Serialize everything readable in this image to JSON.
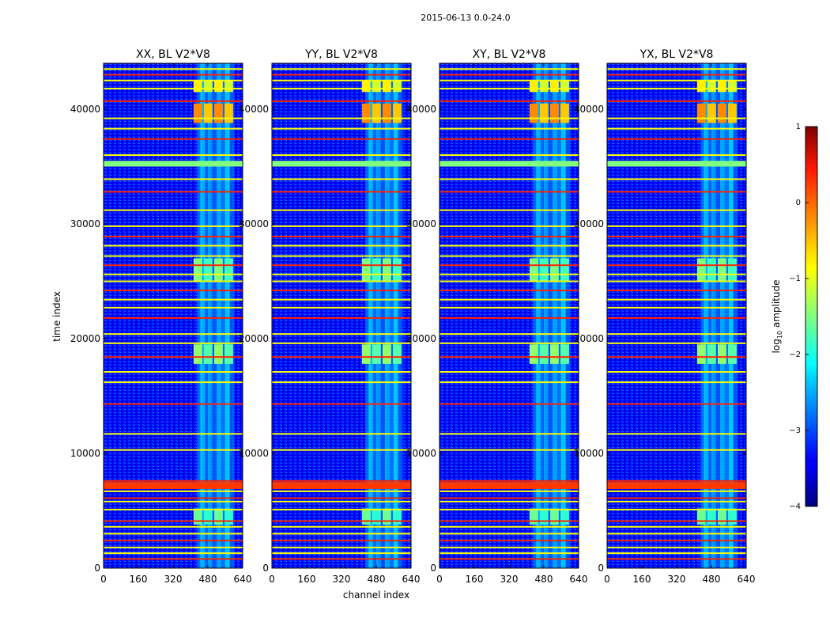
{
  "suptitle": "2015-06-13 0.0-24.0",
  "chart_data": {
    "type": "heatmap",
    "panels": [
      {
        "title": "XX, BL V2*V8"
      },
      {
        "title": "YY, BL V2*V8"
      },
      {
        "title": "XY, BL V2*V8"
      },
      {
        "title": "YX, BL V2*V8"
      }
    ],
    "xlabel": "channel index",
    "ylabel": "time index",
    "xlim": [
      0,
      640
    ],
    "ylim": [
      0,
      44000
    ],
    "xticks": [
      0,
      160,
      320,
      480,
      640
    ],
    "yticks": [
      0,
      10000,
      20000,
      30000,
      40000
    ],
    "colorbar": {
      "label": "log",
      "label_sub": "10",
      "label_rest": " amplitude",
      "min": -4,
      "max": 1,
      "ticks": [
        1,
        0,
        -1,
        -2,
        -3,
        -4
      ],
      "colormap": "jet"
    },
    "flagged_rows": [
      800,
      1300,
      1800,
      2400,
      3000,
      3600,
      4100,
      5100,
      5800,
      6100,
      6700,
      7200,
      7600,
      10300,
      11700,
      14300,
      16200,
      17100,
      18400,
      19600,
      20400,
      21800,
      22700,
      23400,
      24200,
      25000,
      25600,
      26400,
      27200,
      28100,
      28900,
      29800,
      31200,
      32800,
      33900,
      36000,
      37400,
      38300,
      39200,
      40700,
      41800,
      42500,
      43000,
      43500
    ],
    "rfi_channels": [
      430,
      445,
      465,
      480,
      500,
      520,
      540,
      560,
      580
    ],
    "bright_blocks": [
      {
        "t0": 38800,
        "t1": 40500,
        "c0": 410,
        "c1": 600,
        "level": -0.3
      },
      {
        "t0": 41500,
        "t1": 42500,
        "c0": 410,
        "c1": 600,
        "level": -0.8
      },
      {
        "t0": 25000,
        "t1": 27000,
        "c0": 410,
        "c1": 600,
        "level": -1.5
      },
      {
        "t0": 17800,
        "t1": 19500,
        "c0": 410,
        "c1": 600,
        "level": -1.4
      },
      {
        "t0": 3800,
        "t1": 5200,
        "c0": 410,
        "c1": 600,
        "level": -1.6
      }
    ]
  }
}
